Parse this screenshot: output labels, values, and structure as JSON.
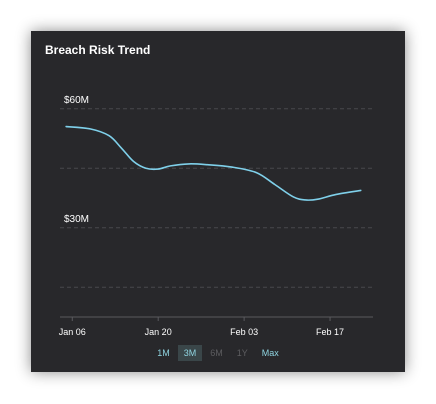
{
  "card": {
    "title": "Breach Risk Trend"
  },
  "colors": {
    "background": "#28282b",
    "line": "#7fd0ea",
    "grid": "#48484c",
    "text": "#ffffff",
    "range_active": "#8fd4e0",
    "range_disabled": "#5d5d60",
    "range_selected_bg": "#3a4649"
  },
  "range_selector": {
    "options": [
      {
        "label": "1M",
        "state": "active"
      },
      {
        "label": "3M",
        "state": "selected"
      },
      {
        "label": "6M",
        "state": "disabled"
      },
      {
        "label": "1Y",
        "state": "disabled"
      },
      {
        "label": "Max",
        "state": "active"
      }
    ]
  },
  "chart_data": {
    "type": "line",
    "title": "Breach Risk Trend",
    "xlabel": "",
    "ylabel": "",
    "y_unit_prefix": "$",
    "y_unit_suffix": "M",
    "ylim": [
      7.5,
      67.5
    ],
    "y_gridlines": [
      15,
      30,
      45,
      60
    ],
    "y_tick_labels": [
      {
        "value": 60,
        "label": "$60M"
      },
      {
        "value": 30,
        "label": "$30M"
      }
    ],
    "xlim": [
      "2024-01-04",
      "2024-02-24"
    ],
    "x_ticks": [
      {
        "date": "2024-01-06",
        "label": "Jan 06"
      },
      {
        "date": "2024-01-20",
        "label": "Jan 20"
      },
      {
        "date": "2024-02-03",
        "label": "Feb 03"
      },
      {
        "date": "2024-02-17",
        "label": "Feb 17"
      }
    ],
    "grid": true,
    "legend": "none",
    "series": [
      {
        "points": [
          {
            "x": "2024-01-05",
            "y": 55.5
          },
          {
            "x": "2024-01-09",
            "y": 54.9
          },
          {
            "x": "2024-01-12",
            "y": 53.2
          },
          {
            "x": "2024-01-14",
            "y": 50.1
          },
          {
            "x": "2024-01-16",
            "y": 46.7
          },
          {
            "x": "2024-01-18",
            "y": 45.0
          },
          {
            "x": "2024-01-20",
            "y": 44.8
          },
          {
            "x": "2024-01-22",
            "y": 45.6
          },
          {
            "x": "2024-01-25",
            "y": 46.1
          },
          {
            "x": "2024-01-28",
            "y": 45.9
          },
          {
            "x": "2024-02-01",
            "y": 45.3
          },
          {
            "x": "2024-02-05",
            "y": 43.9
          },
          {
            "x": "2024-02-08",
            "y": 40.9
          },
          {
            "x": "2024-02-11",
            "y": 37.8
          },
          {
            "x": "2024-02-13",
            "y": 37.0
          },
          {
            "x": "2024-02-15",
            "y": 37.2
          },
          {
            "x": "2024-02-18",
            "y": 38.4
          },
          {
            "x": "2024-02-22",
            "y": 39.4
          }
        ]
      }
    ]
  }
}
